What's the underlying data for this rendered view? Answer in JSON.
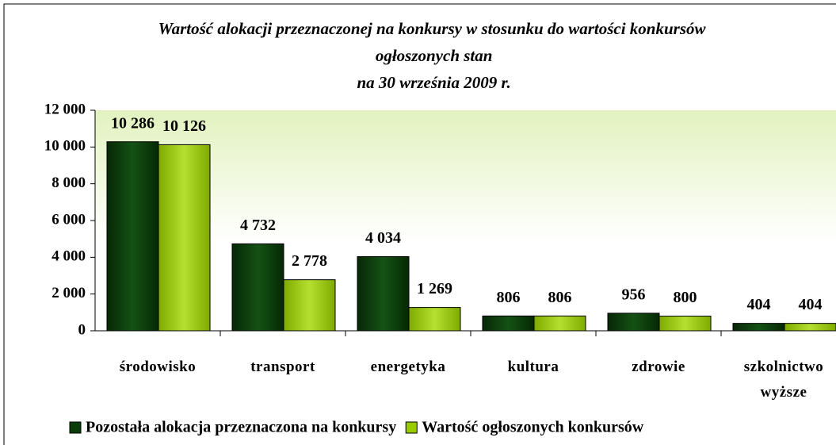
{
  "chart_data": {
    "type": "bar",
    "title": "Wartość alokacji przeznaczonej na konkursy w stosunku do wartości konkursów ogłoszonych stan na 30 września 2009 r.",
    "categories": [
      "środowisko",
      "transport",
      "energetyka",
      "kultura",
      "zdrowie",
      "szkolnictwo wyższe"
    ],
    "series": [
      {
        "name": "Pozostała alokacja przeznaczona na konkursy",
        "color": "#0b3d0b",
        "values": [
          10286,
          4732,
          4034,
          806,
          956,
          404
        ],
        "value_labels": [
          "10 286",
          "4 732",
          "4 034",
          "806",
          "956",
          "404"
        ]
      },
      {
        "name": "Wartość ogłoszonych konkursów",
        "color": "#99cc00",
        "values": [
          10126,
          2778,
          1269,
          806,
          800,
          404
        ],
        "value_labels": [
          "10 126",
          "2 778",
          "1 269",
          "806",
          "800",
          "404"
        ]
      }
    ],
    "ylim": [
      0,
      12000
    ],
    "yticks": [
      0,
      {
        "value": 2000,
        "label": "2 000"
      },
      {
        "value": 4000,
        "label": "4 000"
      },
      {
        "value": 6000,
        "label": "6 000"
      },
      {
        "value": 8000,
        "label": "8 000"
      },
      {
        "value": 10000,
        "label": "10 000"
      },
      {
        "value": 12000,
        "label": "12 000"
      }
    ],
    "legend": "bottom"
  }
}
